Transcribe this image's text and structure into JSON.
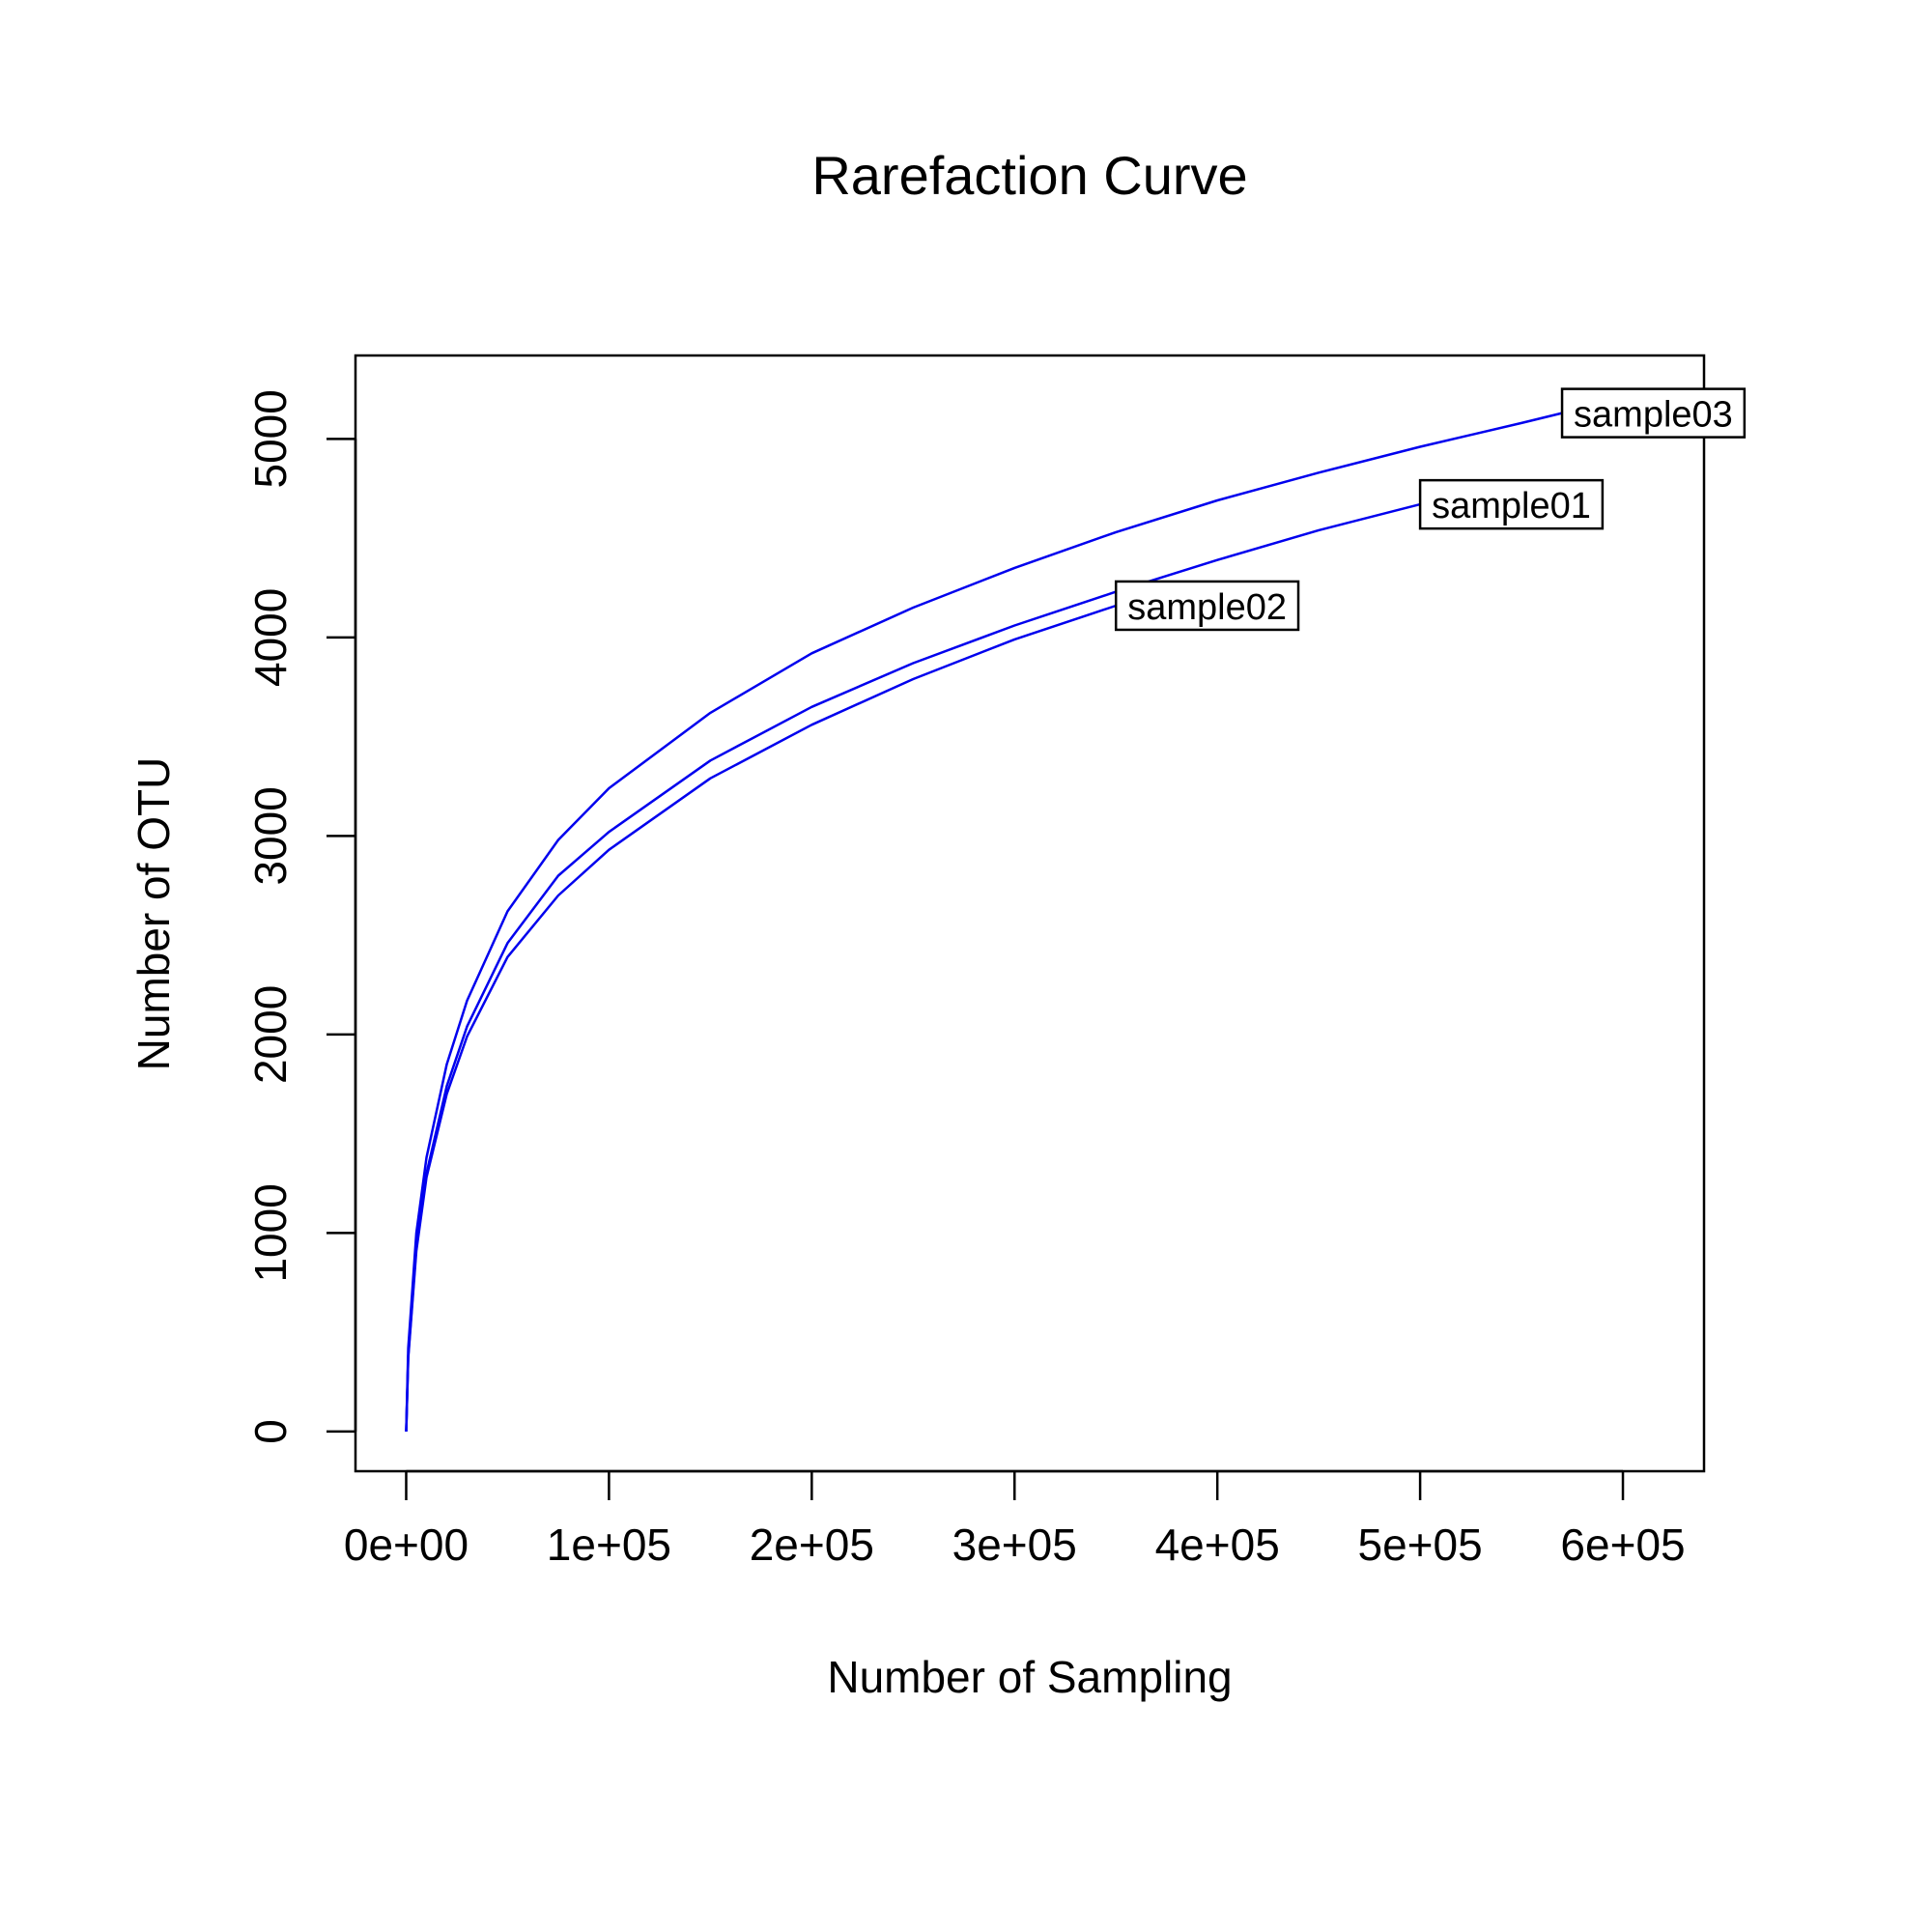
{
  "chart_data": {
    "type": "line",
    "title": "Rarefaction Curve",
    "xlabel": "Number of Sampling",
    "ylabel": "Number of OTU",
    "xlim": [
      -25000,
      640000
    ],
    "ylim": [
      -200,
      5420
    ],
    "grid": false,
    "legend": "none (series labelled at curve ends)",
    "line_color": "#0000ee",
    "x_ticks": [
      {
        "value": 0,
        "label": "0e+00"
      },
      {
        "value": 100000,
        "label": "1e+05"
      },
      {
        "value": 200000,
        "label": "2e+05"
      },
      {
        "value": 300000,
        "label": "3e+05"
      },
      {
        "value": 400000,
        "label": "4e+05"
      },
      {
        "value": 500000,
        "label": "5e+05"
      },
      {
        "value": 600000,
        "label": "6e+05"
      }
    ],
    "y_ticks": [
      {
        "value": 0,
        "label": "0"
      },
      {
        "value": 1000,
        "label": "1000"
      },
      {
        "value": 2000,
        "label": "2000"
      },
      {
        "value": 3000,
        "label": "3000"
      },
      {
        "value": 4000,
        "label": "4000"
      },
      {
        "value": 5000,
        "label": "5000"
      }
    ],
    "series": [
      {
        "name": "sample03",
        "x": [
          0,
          1000,
          5000,
          10000,
          20000,
          30000,
          50000,
          75000,
          100000,
          150000,
          200000,
          250000,
          300000,
          350000,
          400000,
          450000,
          500000,
          550000,
          570000
        ],
        "y": [
          0,
          420,
          1000,
          1380,
          1850,
          2170,
          2620,
          2980,
          3240,
          3620,
          3920,
          4150,
          4350,
          4530,
          4690,
          4830,
          4960,
          5080,
          5130
        ]
      },
      {
        "name": "sample01",
        "x": [
          0,
          1000,
          5000,
          10000,
          20000,
          30000,
          50000,
          75000,
          100000,
          150000,
          200000,
          250000,
          300000,
          350000,
          400000,
          450000,
          500000
        ],
        "y": [
          0,
          380,
          930,
          1300,
          1740,
          2040,
          2460,
          2800,
          3020,
          3380,
          3650,
          3870,
          4060,
          4230,
          4390,
          4540,
          4670
        ]
      },
      {
        "name": "sample02",
        "x": [
          0,
          1000,
          5000,
          10000,
          20000,
          30000,
          50000,
          75000,
          100000,
          150000,
          200000,
          250000,
          300000,
          350000
        ],
        "y": [
          0,
          370,
          910,
          1280,
          1700,
          1990,
          2390,
          2700,
          2930,
          3290,
          3560,
          3790,
          3990,
          4160
        ]
      }
    ]
  }
}
